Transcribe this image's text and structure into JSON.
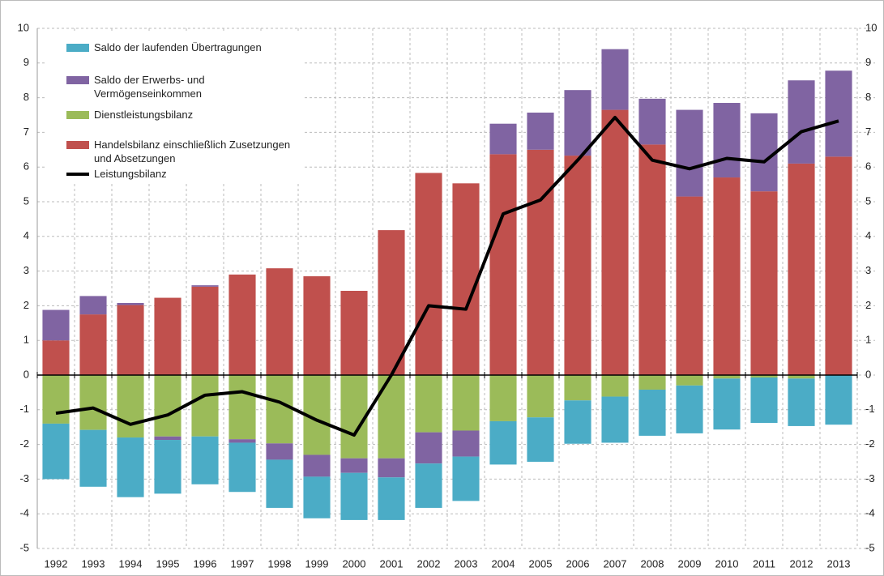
{
  "chart_data": {
    "type": "bar",
    "stacked": true,
    "categories": [
      "1992",
      "1993",
      "1994",
      "1995",
      "1996",
      "1997",
      "1998",
      "1999",
      "2000",
      "2001",
      "2002",
      "2003",
      "2004",
      "2005",
      "2006",
      "2007",
      "2008",
      "2009",
      "2010",
      "2011",
      "2012",
      "2013"
    ],
    "series": [
      {
        "name": "Saldo der laufenden Übertragungen",
        "color": "#4bacc6",
        "values": [
          -1.6,
          -1.64,
          -1.72,
          -1.55,
          -1.38,
          -1.42,
          -1.39,
          -1.2,
          -1.36,
          -1.23,
          -1.28,
          -1.28,
          -1.25,
          -1.28,
          -1.25,
          -1.33,
          -1.33,
          -1.38,
          -1.47,
          -1.31,
          -1.37,
          -1.43
        ]
      },
      {
        "name": "Saldo der Erwerbs- und Vermögenseinkommen",
        "color": "#8064a2",
        "values": [
          0.88,
          0.53,
          0.06,
          -0.1,
          0.04,
          -0.1,
          -0.47,
          -0.63,
          -0.42,
          -0.55,
          -0.9,
          -0.75,
          0.88,
          1.07,
          1.89,
          1.75,
          1.32,
          2.5,
          2.15,
          2.25,
          2.4,
          2.48
        ]
      },
      {
        "name": "Dienstleistungsbilanz",
        "color": "#9bbb59",
        "values": [
          -1.4,
          -1.58,
          -1.8,
          -1.77,
          -1.77,
          -1.85,
          -1.97,
          -2.3,
          -2.4,
          -2.4,
          -1.65,
          -1.6,
          -1.33,
          -1.22,
          -0.73,
          -0.62,
          -0.42,
          -0.3,
          -0.1,
          -0.07,
          -0.1,
          0
        ]
      },
      {
        "name": "Handelsbilanz einschließlich Zusetzungen und Absetzungen",
        "color": "#c0504d",
        "values": [
          1.0,
          1.75,
          2.02,
          2.23,
          2.55,
          2.9,
          3.08,
          2.85,
          2.43,
          4.18,
          5.83,
          5.53,
          6.37,
          6.5,
          6.33,
          7.65,
          6.65,
          5.15,
          5.7,
          5.3,
          6.1,
          6.3
        ]
      },
      {
        "name": "Leistungsbilanz",
        "type": "line",
        "color": "#000000",
        "values": [
          -1.1,
          -0.95,
          -1.42,
          -1.15,
          -0.58,
          -0.48,
          -0.78,
          -1.3,
          -1.73,
          0.0,
          2.0,
          1.9,
          4.65,
          5.05,
          6.2,
          7.43,
          6.2,
          5.95,
          6.25,
          6.15,
          7.02,
          7.33
        ]
      }
    ],
    "ylim": [
      -5,
      10
    ],
    "yticks": [
      -5,
      -4,
      -3,
      -2,
      -1,
      0,
      1,
      2,
      3,
      4,
      5,
      6,
      7,
      8,
      9,
      10
    ],
    "y2lim": [
      -5,
      10
    ],
    "y2ticks": [
      -5,
      -4,
      -3,
      -2,
      -1,
      0,
      1,
      2,
      3,
      4,
      5,
      6,
      7,
      8,
      9,
      10
    ],
    "grid": true
  }
}
